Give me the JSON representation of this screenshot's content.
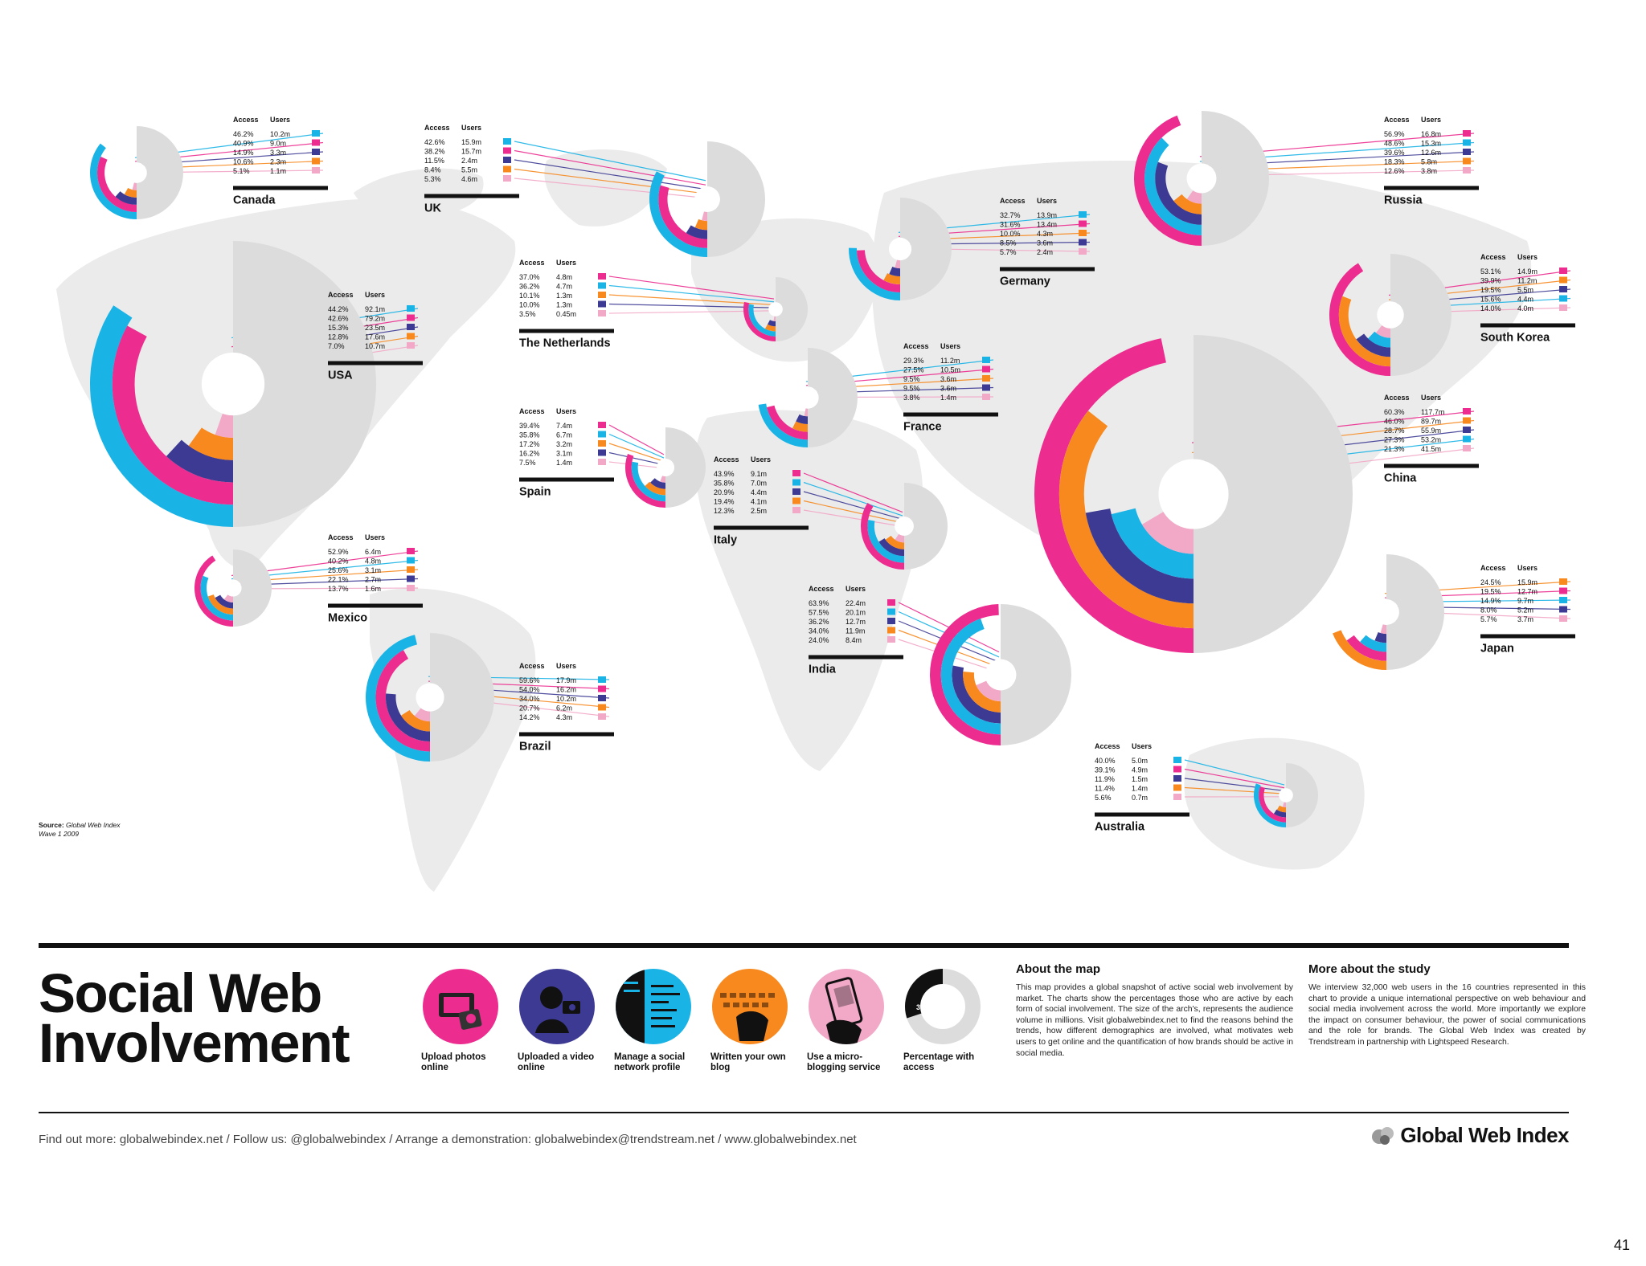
{
  "colors": {
    "photos": "#ec2c8e",
    "video": "#3d3a93",
    "social": "#19b3e6",
    "blog": "#f7891f",
    "micro": "#f2a8c7",
    "access": "#dcdcdc",
    "map": "#ebebeb"
  },
  "icon_names": {
    "photos": "camera-icon",
    "video": "video-icon",
    "social": "profile-icon",
    "blog": "keyboard-icon",
    "micro": "phone-icon"
  },
  "table_header": {
    "access": "Access",
    "users": "Users"
  },
  "chart_data": {
    "type": "donut",
    "title": "Social Web Involvement",
    "legend": [
      {
        "key": "photos",
        "label": "Upload photos online"
      },
      {
        "key": "video",
        "label": "Uploaded a video online"
      },
      {
        "key": "social",
        "label": "Manage a social network profile"
      },
      {
        "key": "blog",
        "label": "Written your own blog"
      },
      {
        "key": "micro",
        "label": "Use a micro-blogging service"
      },
      {
        "key": "access",
        "label": "Percentage with access"
      }
    ],
    "countries": [
      {
        "name": "Canada",
        "rows": [
          {
            "cat": "social",
            "access": "46.2%",
            "users": "10.2m"
          },
          {
            "cat": "photos",
            "access": "40.9%",
            "users": "9.0m"
          },
          {
            "cat": "video",
            "access": "14.9%",
            "users": "3.3m"
          },
          {
            "cat": "blog",
            "access": "10.6%",
            "users": "2.3m"
          },
          {
            "cat": "micro",
            "access": "5.1%",
            "users": "1.1m"
          }
        ]
      },
      {
        "name": "UK",
        "rows": [
          {
            "cat": "social",
            "access": "42.6%",
            "users": "15.9m"
          },
          {
            "cat": "photos",
            "access": "38.2%",
            "users": "15.7m"
          },
          {
            "cat": "video",
            "access": "11.5%",
            "users": "2.4m"
          },
          {
            "cat": "blog",
            "access": "8.4%",
            "users": "5.5m"
          },
          {
            "cat": "micro",
            "access": "5.3%",
            "users": "4.6m"
          }
        ]
      },
      {
        "name": "Russia",
        "rows": [
          {
            "cat": "photos",
            "access": "56.9%",
            "users": "16.8m"
          },
          {
            "cat": "social",
            "access": "48.6%",
            "users": "15.3m"
          },
          {
            "cat": "video",
            "access": "39.6%",
            "users": "12.6m"
          },
          {
            "cat": "blog",
            "access": "18.3%",
            "users": "5.8m"
          },
          {
            "cat": "micro",
            "access": "12.6%",
            "users": "3.8m"
          }
        ]
      },
      {
        "name": "Germany",
        "rows": [
          {
            "cat": "social",
            "access": "32.7%",
            "users": "13.9m"
          },
          {
            "cat": "photos",
            "access": "31.6%",
            "users": "13.4m"
          },
          {
            "cat": "blog",
            "access": "10.0%",
            "users": "4.3m"
          },
          {
            "cat": "video",
            "access": "8.5%",
            "users": "3.6m"
          },
          {
            "cat": "micro",
            "access": "5.7%",
            "users": "2.4m"
          }
        ]
      },
      {
        "name": "The Netherlands",
        "rows": [
          {
            "cat": "photos",
            "access": "37.0%",
            "users": "4.8m"
          },
          {
            "cat": "social",
            "access": "36.2%",
            "users": "4.7m"
          },
          {
            "cat": "blog",
            "access": "10.1%",
            "users": "1.3m"
          },
          {
            "cat": "video",
            "access": "10.0%",
            "users": "1.3m"
          },
          {
            "cat": "micro",
            "access": "3.5%",
            "users": "0.45m"
          }
        ]
      },
      {
        "name": "South Korea",
        "rows": [
          {
            "cat": "photos",
            "access": "53.1%",
            "users": "14.9m"
          },
          {
            "cat": "blog",
            "access": "39.9%",
            "users": "11.2m"
          },
          {
            "cat": "video",
            "access": "19.5%",
            "users": "5.5m"
          },
          {
            "cat": "social",
            "access": "15.6%",
            "users": "4.4m"
          },
          {
            "cat": "micro",
            "access": "14.0%",
            "users": "4.0m"
          }
        ]
      },
      {
        "name": "USA",
        "rows": [
          {
            "cat": "social",
            "access": "44.2%",
            "users": "92.1m"
          },
          {
            "cat": "photos",
            "access": "42.6%",
            "users": "79.2m"
          },
          {
            "cat": "video",
            "access": "15.3%",
            "users": "23.5m"
          },
          {
            "cat": "blog",
            "access": "12.8%",
            "users": "17.6m"
          },
          {
            "cat": "micro",
            "access": "7.0%",
            "users": "10.7m"
          }
        ]
      },
      {
        "name": "France",
        "rows": [
          {
            "cat": "social",
            "access": "29.3%",
            "users": "11.2m"
          },
          {
            "cat": "photos",
            "access": "27.5%",
            "users": "10.5m"
          },
          {
            "cat": "blog",
            "access": "9.5%",
            "users": "3.6m"
          },
          {
            "cat": "video",
            "access": "9.5%",
            "users": "3.6m"
          },
          {
            "cat": "micro",
            "access": "3.8%",
            "users": "1.4m"
          }
        ]
      },
      {
        "name": "Spain",
        "rows": [
          {
            "cat": "photos",
            "access": "39.4%",
            "users": "7.4m"
          },
          {
            "cat": "social",
            "access": "35.8%",
            "users": "6.7m"
          },
          {
            "cat": "blog",
            "access": "17.2%",
            "users": "3.2m"
          },
          {
            "cat": "video",
            "access": "16.2%",
            "users": "3.1m"
          },
          {
            "cat": "micro",
            "access": "7.5%",
            "users": "1.4m"
          }
        ]
      },
      {
        "name": "China",
        "rows": [
          {
            "cat": "photos",
            "access": "60.3%",
            "users": "117.7m"
          },
          {
            "cat": "blog",
            "access": "46.0%",
            "users": "89.7m"
          },
          {
            "cat": "video",
            "access": "28.7%",
            "users": "55.9m"
          },
          {
            "cat": "social",
            "access": "27.3%",
            "users": "53.2m"
          },
          {
            "cat": "micro",
            "access": "21.3%",
            "users": "41.5m"
          }
        ]
      },
      {
        "name": "Italy",
        "rows": [
          {
            "cat": "photos",
            "access": "43.9%",
            "users": "9.1m"
          },
          {
            "cat": "social",
            "access": "35.8%",
            "users": "7.0m"
          },
          {
            "cat": "video",
            "access": "20.9%",
            "users": "4.4m"
          },
          {
            "cat": "blog",
            "access": "19.4%",
            "users": "4.1m"
          },
          {
            "cat": "micro",
            "access": "12.3%",
            "users": "2.5m"
          }
        ]
      },
      {
        "name": "Mexico",
        "rows": [
          {
            "cat": "photos",
            "access": "52.9%",
            "users": "6.4m"
          },
          {
            "cat": "social",
            "access": "40.2%",
            "users": "4.8m"
          },
          {
            "cat": "blog",
            "access": "25.6%",
            "users": "3.1m"
          },
          {
            "cat": "video",
            "access": "22.1%",
            "users": "2.7m"
          },
          {
            "cat": "micro",
            "access": "13.7%",
            "users": "1.6m"
          }
        ]
      },
      {
        "name": "Japan",
        "rows": [
          {
            "cat": "blog",
            "access": "24.5%",
            "users": "15.9m"
          },
          {
            "cat": "photos",
            "access": "19.5%",
            "users": "12.7m"
          },
          {
            "cat": "social",
            "access": "14.9%",
            "users": "9.7m"
          },
          {
            "cat": "video",
            "access": "8.0%",
            "users": "5.2m"
          },
          {
            "cat": "micro",
            "access": "5.7%",
            "users": "3.7m"
          }
        ]
      },
      {
        "name": "India",
        "rows": [
          {
            "cat": "photos",
            "access": "63.9%",
            "users": "22.4m"
          },
          {
            "cat": "social",
            "access": "57.5%",
            "users": "20.1m"
          },
          {
            "cat": "video",
            "access": "36.2%",
            "users": "12.7m"
          },
          {
            "cat": "blog",
            "access": "34.0%",
            "users": "11.9m"
          },
          {
            "cat": "micro",
            "access": "24.0%",
            "users": "8.4m"
          }
        ]
      },
      {
        "name": "Brazil",
        "rows": [
          {
            "cat": "social",
            "access": "59.6%",
            "users": "17.9m"
          },
          {
            "cat": "photos",
            "access": "54.0%",
            "users": "16.2m"
          },
          {
            "cat": "video",
            "access": "34.0%",
            "users": "10.2m"
          },
          {
            "cat": "blog",
            "access": "20.7%",
            "users": "6.2m"
          },
          {
            "cat": "micro",
            "access": "14.2%",
            "users": "4.3m"
          }
        ]
      },
      {
        "name": "Australia",
        "rows": [
          {
            "cat": "social",
            "access": "40.0%",
            "users": "5.0m"
          },
          {
            "cat": "photos",
            "access": "39.1%",
            "users": "4.9m"
          },
          {
            "cat": "video",
            "access": "11.9%",
            "users": "1.5m"
          },
          {
            "cat": "blog",
            "access": "11.4%",
            "users": "1.4m"
          },
          {
            "cat": "micro",
            "access": "5.6%",
            "users": "0.7m"
          }
        ]
      }
    ]
  },
  "source": {
    "label": "Source:",
    "name": "Global Web Index",
    "wave": "Wave 1 2009"
  },
  "title_line1": "Social Web",
  "title_line2": "Involvement",
  "legend_access_badge": "30%",
  "about": {
    "heading": "About the map",
    "text": "This map provides a global snapshot of active social web involvement by market. The charts show the percentages those who are active by each form of social involvement. The size of the arch's, represents the audience volume in millions. Visit globalwebindex.net to find the reasons behind the trends, how different demographics are involved, what motivates web users to get online and the quantification of how brands should be active in social media."
  },
  "study": {
    "heading": "More about the study",
    "text": "We interview 32,000 web users in the 16 countries represented in this chart to provide a unique international perspective on web behaviour and social media involvement across the world. More importantly we explore the impact on consumer behaviour, the power of social communications and the role for brands. The Global Web Index was created by Trendstream in partnership with Lightspeed Research."
  },
  "footer_links": "Find out more: globalwebindex.net / Follow us: @globalwebindex / Arrange a demonstration: globalwebindex@trendstream.net / www.globalwebindex.net",
  "brand": "Global Web Index",
  "page_number": "41"
}
